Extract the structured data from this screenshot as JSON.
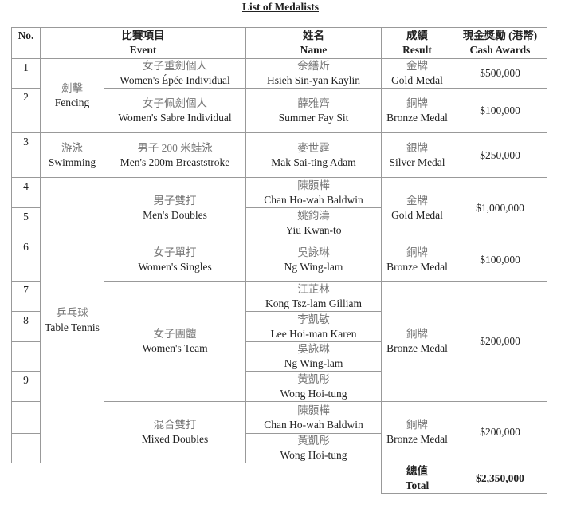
{
  "title": "List of Medalists",
  "headers": [
    {
      "zh": "",
      "en": "No."
    },
    {
      "zh": "比賽項目",
      "en": "Event"
    },
    {
      "zh": "姓名",
      "en": "Name"
    },
    {
      "zh": "成績",
      "en": "Result"
    },
    {
      "zh": "現金獎勵 (港幣)",
      "en": "Cash Awards"
    }
  ],
  "numbers": [
    "1",
    "2",
    "3",
    "4",
    "5",
    "6",
    "7",
    "8",
    "",
    "9",
    "",
    ""
  ],
  "sports": [
    {
      "zh": "劍擊",
      "en": "Fencing"
    },
    {
      "zh": "游泳",
      "en": "Swimming"
    },
    {
      "zh": "乒乓球",
      "en": "Table Tennis"
    }
  ],
  "events": [
    {
      "zh": "女子重劍個人",
      "en": "Women's Épée Individual"
    },
    {
      "zh": "女子佩劍個人",
      "en": "Women's Sabre Individual"
    },
    {
      "zh": "男子 200 米蛙泳",
      "en": "Men's 200m Breaststroke"
    },
    {
      "zh": "男子雙打",
      "en": "Men's Doubles"
    },
    {
      "zh": "女子單打",
      "en": "Women's Singles"
    },
    {
      "zh": "女子團體",
      "en": "Women's Team"
    },
    {
      "zh": "混合雙打",
      "en": "Mixed Doubles"
    }
  ],
  "names": [
    {
      "zh": "佘繕炘",
      "en": "Hsieh Sin-yan Kaylin"
    },
    {
      "zh": "薛雅齊",
      "en": "Summer Fay Sit"
    },
    {
      "zh": "麥世霆",
      "en": "Mak Sai-ting Adam"
    },
    {
      "zh": "陳顥樺",
      "en": "Chan Ho-wah Baldwin"
    },
    {
      "zh": "姚鈞濤",
      "en": "Yiu Kwan-to"
    },
    {
      "zh": "吳詠琳",
      "en": "Ng Wing-lam"
    },
    {
      "zh": "江芷林",
      "en": "Kong Tsz-lam Gilliam"
    },
    {
      "zh": "李凱敏",
      "en": "Lee Hoi-man Karen"
    },
    {
      "zh": "吳詠琳",
      "en": "Ng Wing-lam"
    },
    {
      "zh": "黃凱彤",
      "en": "Wong Hoi-tung"
    },
    {
      "zh": "陳顥樺",
      "en": "Chan Ho-wah Baldwin"
    },
    {
      "zh": "黃凱彤",
      "en": "Wong Hoi-tung"
    }
  ],
  "results": [
    {
      "zh": "金牌",
      "en": "Gold Medal"
    },
    {
      "zh": "銅牌",
      "en": "Bronze Medal"
    },
    {
      "zh": "銀牌",
      "en": "Silver Medal"
    },
    {
      "zh": "金牌",
      "en": "Gold Medal"
    },
    {
      "zh": "銅牌",
      "en": "Bronze Medal"
    },
    {
      "zh": "銅牌",
      "en": "Bronze Medal"
    },
    {
      "zh": "銅牌",
      "en": "Bronze Medal"
    }
  ],
  "cash": [
    "$500,000",
    "$100,000",
    "$250,000",
    "$1,000,000",
    "$100,000",
    "$200,000",
    "$200,000"
  ],
  "total": {
    "zh": "總值",
    "en": "Total",
    "value": "$2,350,000"
  }
}
